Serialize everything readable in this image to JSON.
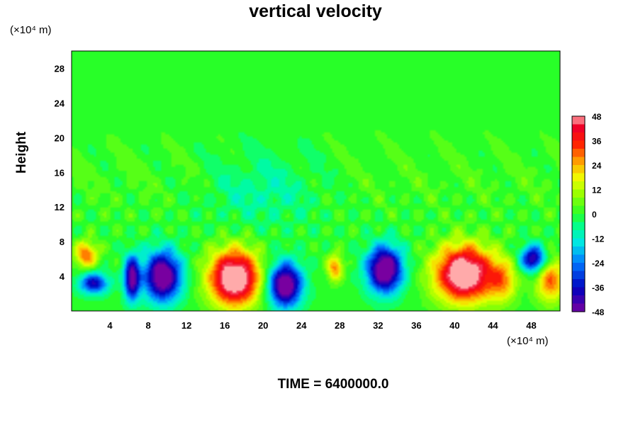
{
  "chart_data": {
    "type": "heatmap",
    "title": "vertical velocity",
    "ylabel": "Height",
    "x_unit": "(×10⁴ m)",
    "y_unit": "(×10⁴ m)",
    "footer": "TIME = 6400000.0",
    "xlim": [
      0,
      51
    ],
    "ylim": [
      0,
      30
    ],
    "xticks": [
      4,
      8,
      12,
      16,
      20,
      24,
      28,
      32,
      36,
      40,
      44,
      48
    ],
    "yticks": [
      4,
      8,
      12,
      16,
      20,
      24,
      28
    ],
    "colorbar": {
      "min": -48,
      "max": 48,
      "ticks": [
        48,
        36,
        24,
        12,
        0,
        -12,
        -24,
        -36,
        -48
      ]
    },
    "features": [
      {
        "x": 17,
        "y": 3.8,
        "sx": 2.6,
        "sy": 3.2,
        "value": 60
      },
      {
        "x": 41,
        "y": 4.3,
        "sx": 3.0,
        "sy": 3.2,
        "value": 60
      },
      {
        "x": 45,
        "y": 3.5,
        "sx": 1.5,
        "sy": 2.5,
        "value": 22
      },
      {
        "x": 50,
        "y": 3.5,
        "sx": 1.5,
        "sy": 2.5,
        "value": 30
      },
      {
        "x": 27.5,
        "y": 5.0,
        "sx": 0.8,
        "sy": 1.5,
        "value": 28
      },
      {
        "x": 9.5,
        "y": 4.0,
        "sx": 1.9,
        "sy": 2.8,
        "value": -58
      },
      {
        "x": 6.3,
        "y": 3.8,
        "sx": 0.8,
        "sy": 2.5,
        "value": -50
      },
      {
        "x": 2.3,
        "y": 3.2,
        "sx": 1.5,
        "sy": 1.2,
        "value": -38
      },
      {
        "x": 22.3,
        "y": 3.0,
        "sx": 1.7,
        "sy": 2.5,
        "value": -58
      },
      {
        "x": 32.7,
        "y": 4.8,
        "sx": 1.8,
        "sy": 2.6,
        "value": -60
      },
      {
        "x": 48.2,
        "y": 6.0,
        "sx": 1.3,
        "sy": 1.5,
        "value": -45
      },
      {
        "x": 20,
        "y": 14,
        "sx": 6,
        "sy": 4,
        "value": -10
      },
      {
        "x": 1.5,
        "y": 6.5,
        "sx": 1.2,
        "sy": 1.5,
        "value": 30
      }
    ]
  }
}
